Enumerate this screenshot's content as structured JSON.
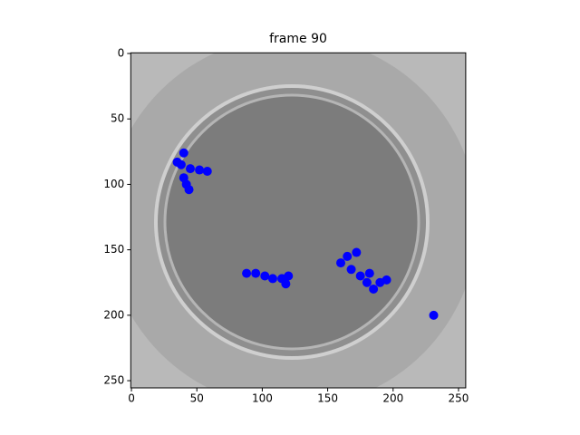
{
  "chart_data": {
    "type": "image",
    "title": "frame 90",
    "xlim": [
      -0.5,
      255.5
    ],
    "ylim": [
      255.5,
      -0.5
    ],
    "xticks": [
      0,
      50,
      100,
      150,
      200,
      250
    ],
    "yticks": [
      0,
      50,
      100,
      150,
      200,
      250
    ],
    "color": "#0000ff",
    "x": [
      40,
      38,
      35,
      45,
      52,
      58,
      40,
      42,
      44,
      88,
      95,
      102,
      108,
      115,
      120,
      118,
      160,
      165,
      172,
      168,
      175,
      180,
      185,
      190,
      195,
      182,
      231
    ],
    "values": [
      76,
      85,
      83,
      88,
      89,
      90,
      95,
      100,
      104,
      168,
      168,
      170,
      172,
      172,
      170,
      176,
      160,
      155,
      152,
      165,
      170,
      175,
      180,
      175,
      173,
      168,
      200
    ]
  }
}
